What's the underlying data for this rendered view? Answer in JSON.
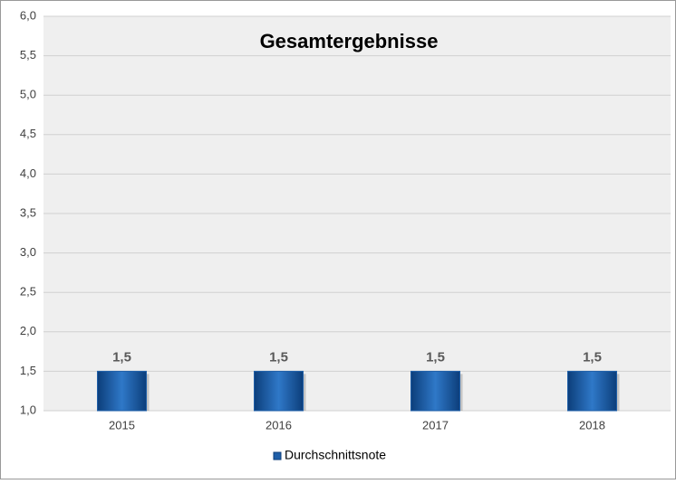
{
  "chart_data": {
    "type": "bar",
    "title": "Gesamtergebnisse",
    "categories": [
      "2015",
      "2016",
      "2017",
      "2018"
    ],
    "series": [
      {
        "name": "Durchschnittsnote",
        "color": "#1f5fa8",
        "values": [
          1.5,
          1.5,
          1.5,
          1.5
        ],
        "value_labels": [
          "1,5",
          "1,5",
          "1,5",
          "1,5"
        ]
      }
    ],
    "ylim": [
      1,
      6
    ],
    "yticks": [
      {
        "value": 1,
        "label": "1,0"
      },
      {
        "value": 1.5,
        "label": "1,5"
      },
      {
        "value": 2,
        "label": "2,0"
      },
      {
        "value": 2.5,
        "label": "2,5"
      },
      {
        "value": 3,
        "label": "3,0"
      },
      {
        "value": 3.5,
        "label": "3,5"
      },
      {
        "value": 4,
        "label": "4,0"
      },
      {
        "value": 4.5,
        "label": "4,5"
      },
      {
        "value": 5,
        "label": "5,0"
      },
      {
        "value": 5.5,
        "label": "5,5"
      },
      {
        "value": 6,
        "label": "6,0"
      }
    ],
    "grid": true,
    "legend": "bottom"
  }
}
